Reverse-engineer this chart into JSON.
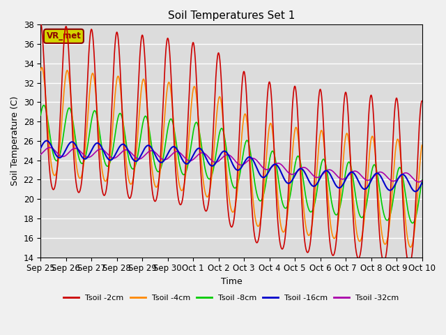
{
  "title": "Soil Temperatures Set 1",
  "xlabel": "Time",
  "ylabel": "Soil Temperature (C)",
  "ylim": [
    14,
    38
  ],
  "background_color": "#dcdcdc",
  "grid_color": "#ffffff",
  "annotation_text": "VR_met",
  "annotation_bg": "#d4d400",
  "annotation_border": "#8B0000",
  "legend": [
    "Tsoil -2cm",
    "Tsoil -4cm",
    "Tsoil -8cm",
    "Tsoil -16cm",
    "Tsoil -32cm"
  ],
  "colors": [
    "#cc0000",
    "#ff8800",
    "#00cc00",
    "#0000cc",
    "#aa00aa"
  ],
  "xtick_labels": [
    "Sep 25",
    "Sep 26",
    "Sep 27",
    "Sep 28",
    "Sep 29",
    "Sep 30",
    "Oct 1",
    "Oct 2",
    "Oct 3",
    "Oct 4",
    "Oct 5",
    "Oct 6",
    "Oct 7",
    "Oct 8",
    "Oct 9",
    "Oct 10"
  ],
  "figsize": [
    6.4,
    4.8
  ],
  "dpi": 100
}
